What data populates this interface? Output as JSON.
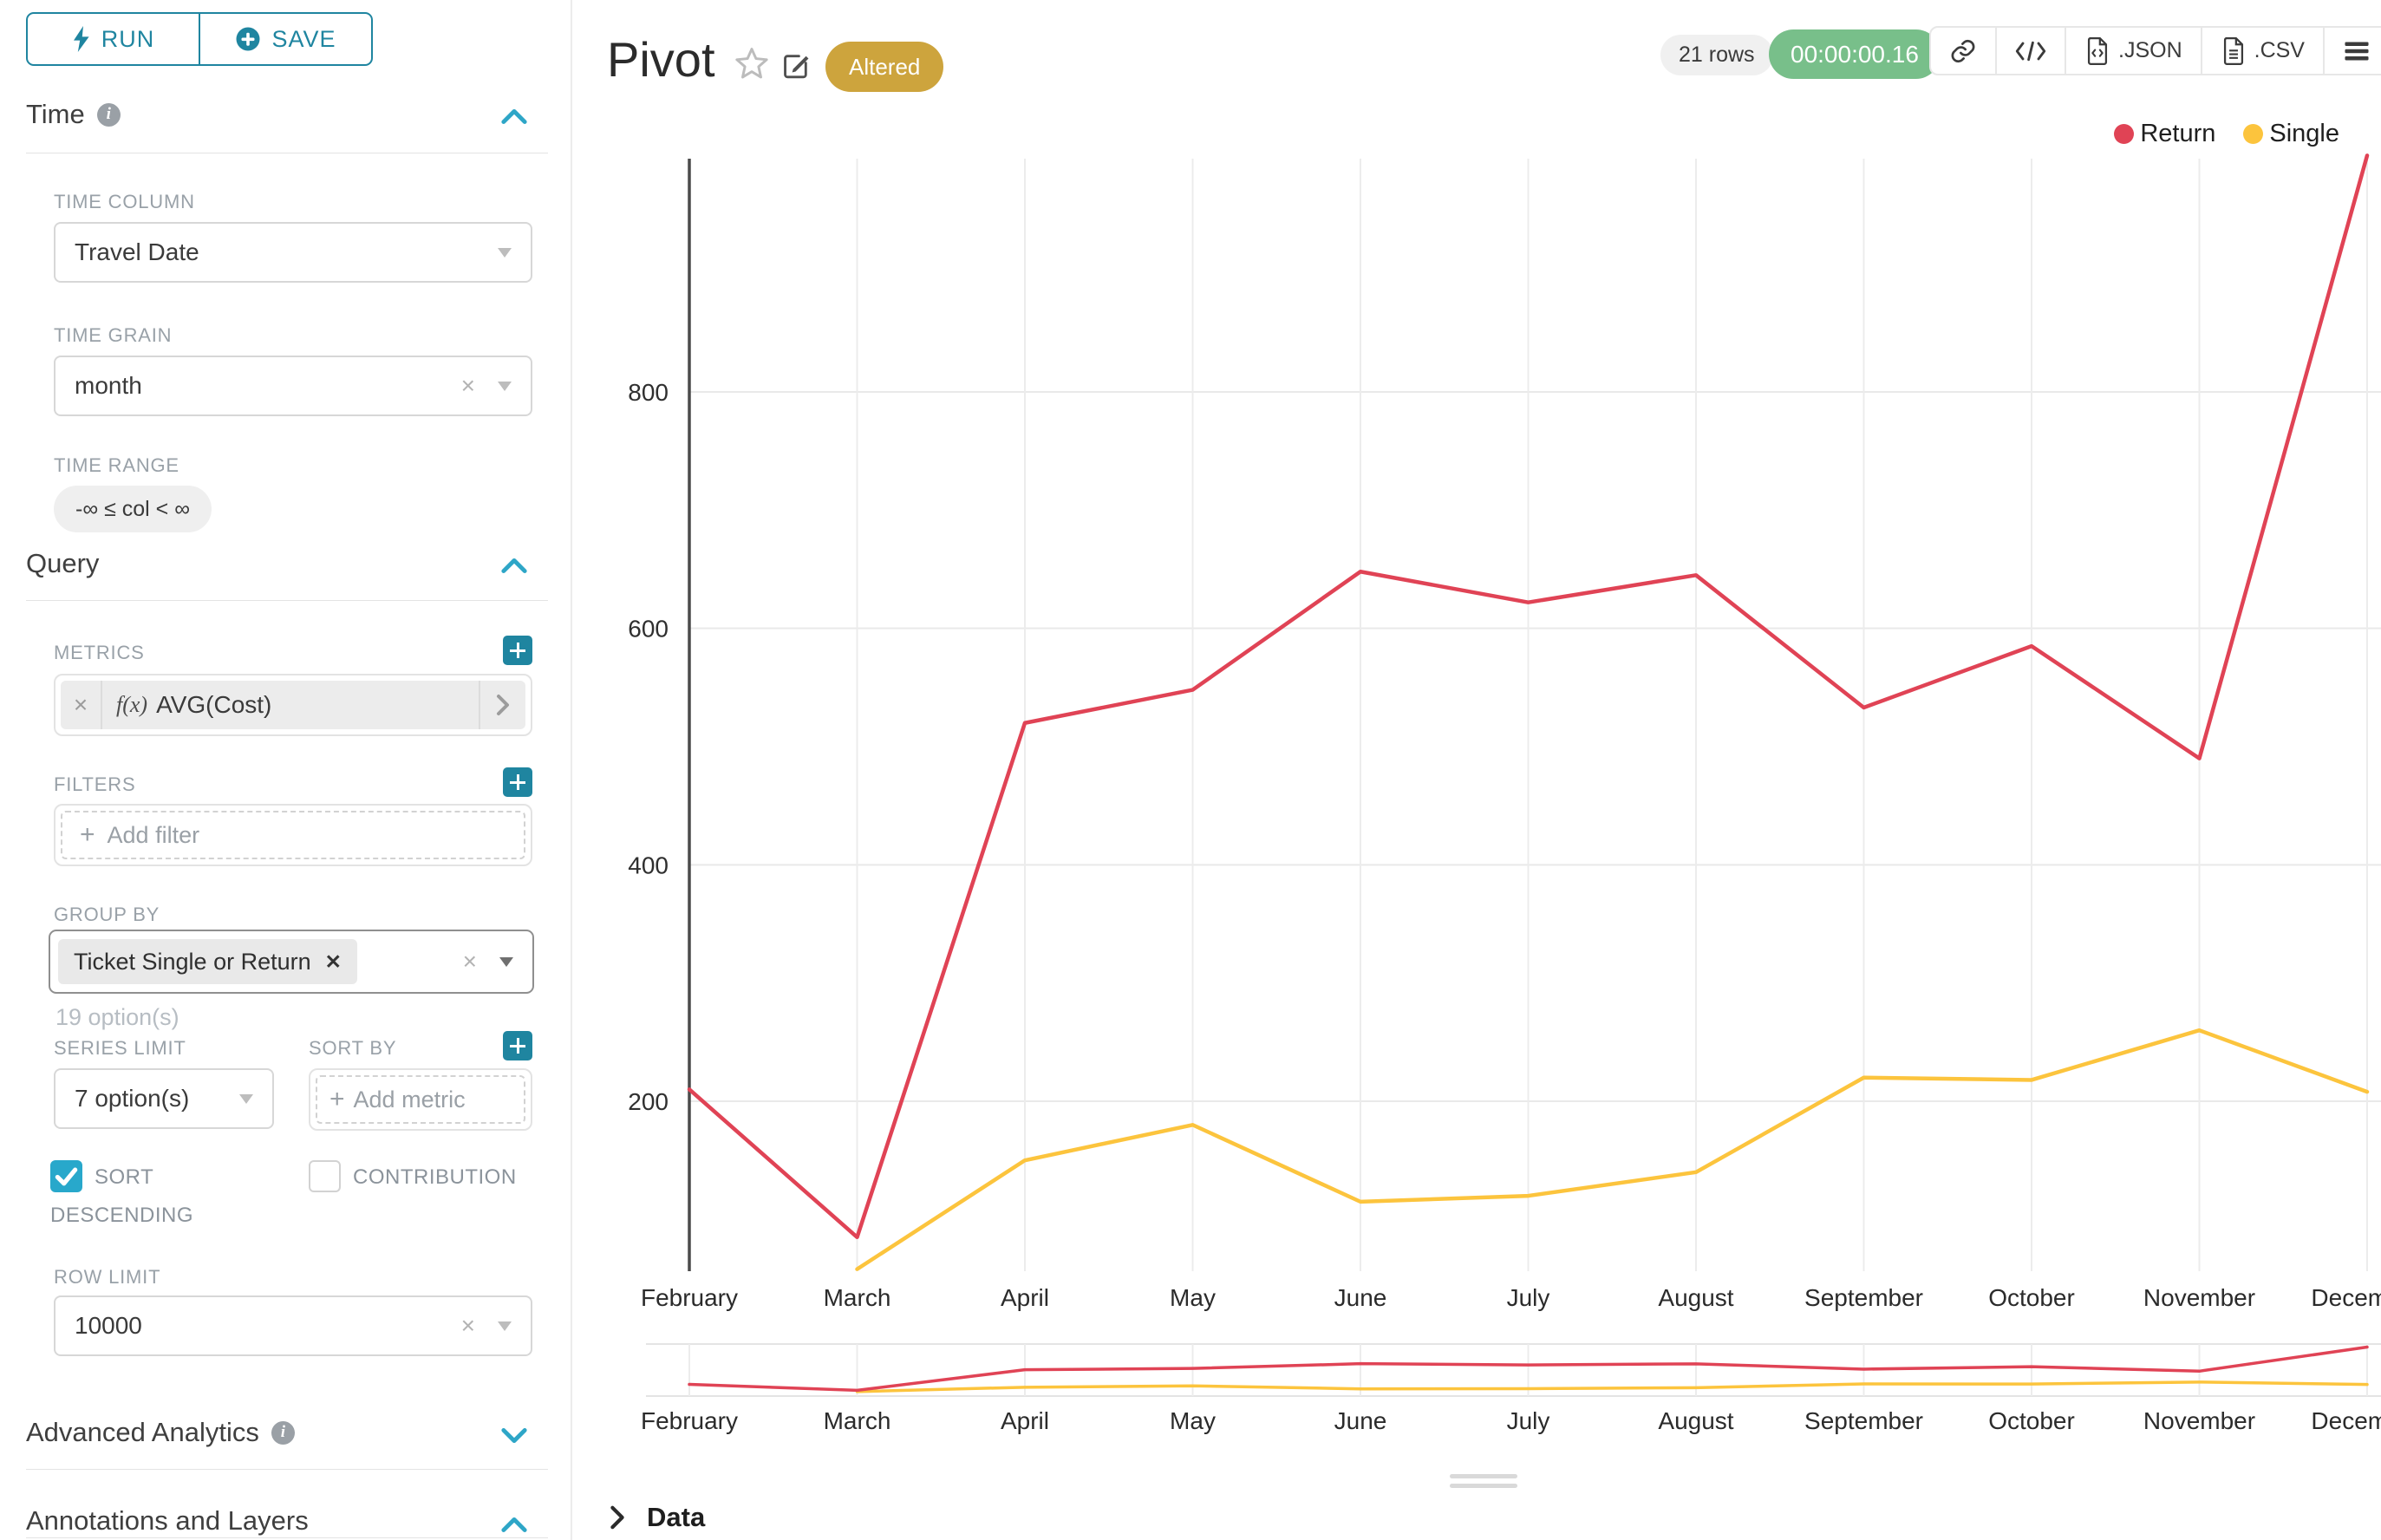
{
  "colors": {
    "accent": "#1f85a0",
    "accent_light": "#28a8cb",
    "altered_badge": "#cda43d",
    "timer_badge": "#78bf8a",
    "grid": "#ececec",
    "axis": "#4a4a4a"
  },
  "toolbar": {
    "run_label": "RUN",
    "save_label": "SAVE"
  },
  "panels": {
    "time": {
      "title": "Time",
      "time_column_label": "TIME COLUMN",
      "time_column_value": "Travel Date",
      "time_grain_label": "TIME GRAIN",
      "time_grain_value": "month",
      "time_range_label": "TIME RANGE",
      "time_range_value": "-∞ ≤ col < ∞"
    },
    "query": {
      "title": "Query",
      "metrics_label": "METRICS",
      "metric_fx": "f(x)",
      "metric_value": "AVG(Cost)",
      "filters_label": "FILTERS",
      "add_filter_label": "Add filter",
      "group_by_label": "GROUP BY",
      "group_by_value": "Ticket Single or Return",
      "options_hint": "19 option(s)",
      "series_limit_label": "SERIES LIMIT",
      "series_limit_value": "7 option(s)",
      "sort_by_label": "SORT BY",
      "add_metric_label": "Add metric",
      "sort_descending_label": "SORT DESCENDING",
      "contribution_label": "CONTRIBUTION",
      "row_limit_label": "ROW LIMIT",
      "row_limit_value": "10000"
    },
    "advanced_analytics": {
      "title": "Advanced Analytics"
    },
    "annotations": {
      "title": "Annotations and Layers"
    }
  },
  "header": {
    "title": "Pivot",
    "altered_badge": "Altered",
    "row_count": "21 rows",
    "timer": "00:00:00.16",
    "export_json_label": ".JSON",
    "export_csv_label": ".CSV"
  },
  "data_panel": {
    "title": "Data"
  },
  "chart_data": {
    "type": "line",
    "categories": [
      "February",
      "March",
      "April",
      "May",
      "June",
      "July",
      "August",
      "September",
      "October",
      "November",
      "December"
    ],
    "series": [
      {
        "name": "Return",
        "color": "#e04355",
        "values": [
          210,
          85,
          520,
          548,
          648,
          622,
          645,
          533,
          585,
          490,
          1000
        ]
      },
      {
        "name": "Single",
        "color": "#fcc43d",
        "values": [
          null,
          58,
          150,
          180,
          115,
          120,
          140,
          220,
          218,
          260,
          208
        ]
      }
    ],
    "title": "",
    "xlabel": "",
    "ylabel": "",
    "yticks": [
      200,
      400,
      600,
      800
    ],
    "ylim": [
      55,
      1010
    ],
    "grid": true,
    "legend_position": "top-right",
    "has_range_selector_preview": true
  }
}
